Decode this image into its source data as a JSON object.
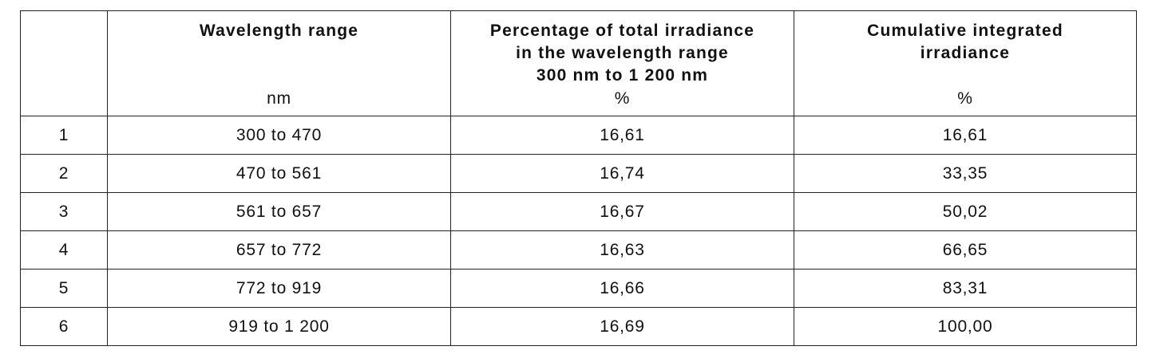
{
  "table": {
    "headers": [
      {
        "title": "",
        "unit": ""
      },
      {
        "title": "Wavelength range",
        "unit": "nm"
      },
      {
        "title": "Percentage of total irradiance\nin the wavelength range\n300 nm to 1 200 nm",
        "unit": "%"
      },
      {
        "title": "Cumulative integrated\nirradiance",
        "unit": "%"
      }
    ],
    "rows": [
      [
        "1",
        "300 to 470",
        "16,61",
        "16,61"
      ],
      [
        "2",
        "470 to 561",
        "16,74",
        "33,35"
      ],
      [
        "3",
        "561 to 657",
        "16,67",
        "50,02"
      ],
      [
        "4",
        "657 to 772",
        "16,63",
        "66,65"
      ],
      [
        "5",
        "772 to 919",
        "16,66",
        "83,31"
      ],
      [
        "6",
        "919 to 1 200",
        "16,69",
        "100,00"
      ]
    ]
  }
}
